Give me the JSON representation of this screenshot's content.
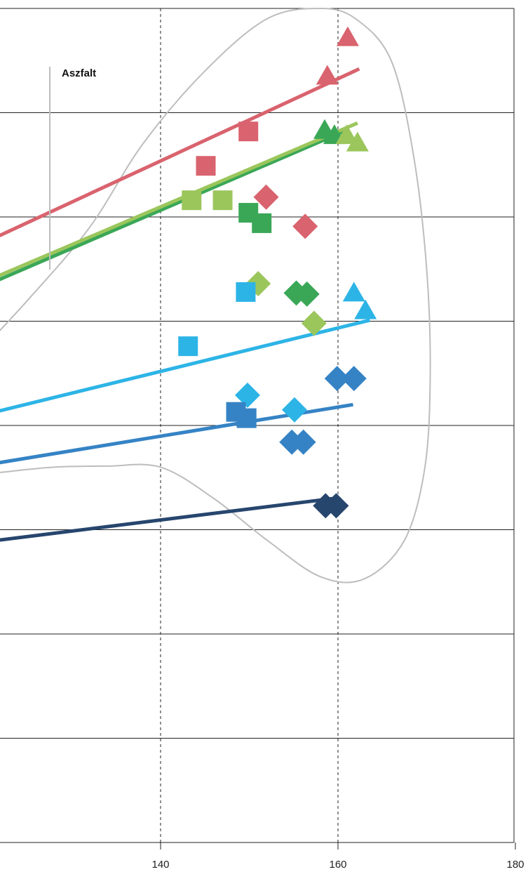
{
  "chart_data": {
    "type": "scatter",
    "title": "",
    "xlabel": "",
    "ylabel": "",
    "x_ticks": [
      140,
      160,
      180
    ],
    "xlim": [
      118,
      180
    ],
    "ylim": [
      0,
      8
    ],
    "grid": "dashed vertical at 140 and 160, solid horizontal every 1 unit",
    "annotations": [
      {
        "text": "Aszfalt"
      }
    ],
    "series": [
      {
        "color": "#d9636e",
        "line": [
          [
            118,
            5.67
          ],
          [
            162.4,
            7.42
          ]
        ],
        "triangles": [
          [
            161.1,
            7.72
          ],
          [
            158.8,
            7.35
          ]
        ],
        "squares": [
          [
            149.9,
            6.82
          ],
          [
            145.1,
            6.49
          ]
        ],
        "diamonds": [
          [
            151.9,
            6.19
          ],
          [
            156.3,
            5.91
          ]
        ]
      },
      {
        "color": "#3aa757",
        "line": [
          [
            118,
            5.26
          ],
          [
            161.2,
            6.84
          ]
        ],
        "triangles": [
          [
            158.5,
            6.83
          ],
          [
            159.6,
            6.78
          ]
        ],
        "squares": [
          [
            149.9,
            6.04
          ],
          [
            151.4,
            5.94
          ]
        ],
        "diamonds": [
          [
            155.3,
            5.27
          ],
          [
            156.5,
            5.26
          ]
        ]
      },
      {
        "color": "#9bc65c",
        "line": [
          [
            118,
            5.3
          ],
          [
            162.2,
            6.9
          ]
        ],
        "triangles": [
          [
            161.0,
            6.78
          ],
          [
            162.2,
            6.71
          ]
        ],
        "squares": [
          [
            143.5,
            6.16
          ],
          [
            147.0,
            6.16
          ]
        ],
        "diamonds": [
          [
            151.0,
            5.36
          ],
          [
            157.3,
            4.98
          ]
        ]
      },
      {
        "color": "#2db4e6",
        "line": [
          [
            118,
            4.06
          ],
          [
            163.6,
            5.01
          ]
        ],
        "triangles": [
          [
            161.8,
            5.27
          ],
          [
            163.1,
            5.1
          ]
        ],
        "squares": [
          [
            149.6,
            5.28
          ],
          [
            143.1,
            4.76
          ]
        ],
        "diamonds": [
          [
            149.8,
            4.29
          ],
          [
            155.1,
            4.15
          ]
        ]
      },
      {
        "color": "#3583c5",
        "line": [
          [
            118,
            3.59
          ],
          [
            161.7,
            4.2
          ]
        ],
        "triangles": [],
        "squares": [
          [
            148.5,
            4.13
          ],
          [
            149.7,
            4.07
          ]
        ],
        "diamonds": [
          [
            159.9,
            4.45
          ],
          [
            161.8,
            4.45
          ],
          [
            154.8,
            3.84
          ],
          [
            156.1,
            3.84
          ]
        ]
      },
      {
        "color": "#27466e",
        "line": [
          [
            118,
            2.86
          ],
          [
            159.5,
            3.3
          ]
        ],
        "triangles": [],
        "squares": [],
        "diamonds": [
          [
            158.6,
            3.23
          ],
          [
            159.8,
            3.23
          ]
        ]
      }
    ]
  }
}
